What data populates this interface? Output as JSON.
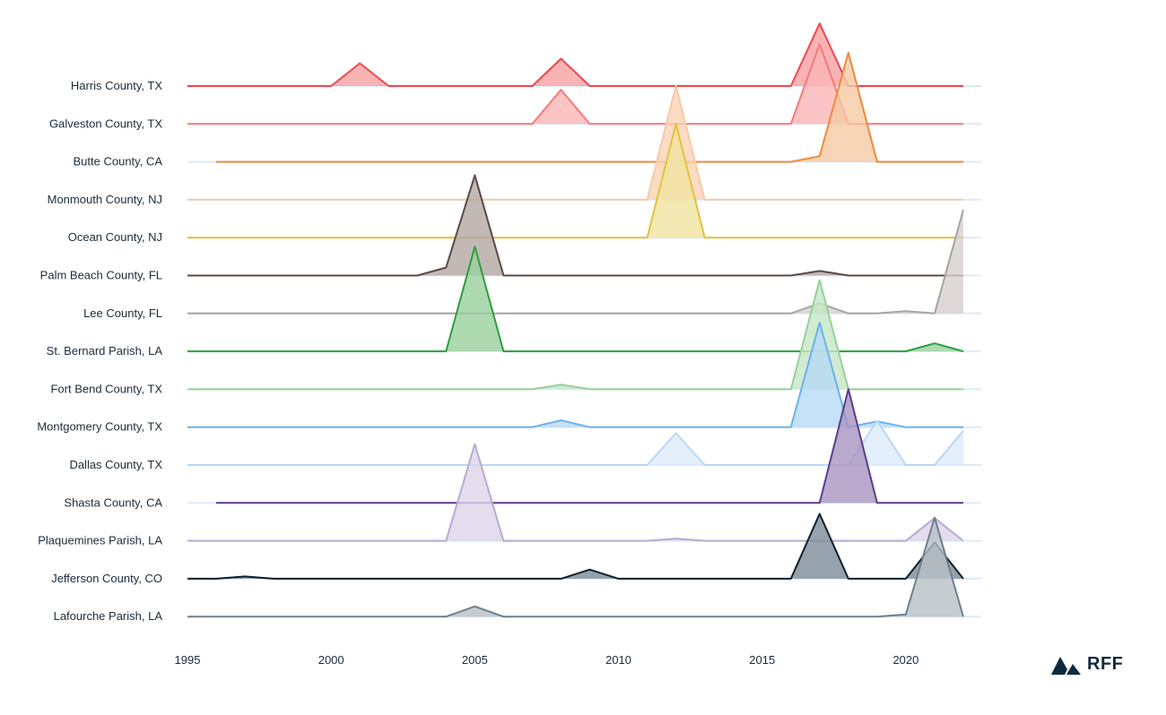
{
  "chart_data": {
    "type": "area",
    "subtype": "ridgeline",
    "title": "",
    "xlabel": "",
    "ylabel": "",
    "xlim": [
      1995,
      2022
    ],
    "x_ticks": [
      "1995",
      "2000",
      "2005",
      "2010",
      "2015",
      "2020"
    ],
    "value_note_scale": "relative peak height, 0-100",
    "grid": "baseline per row",
    "series": [
      {
        "name": "Harris County, TX",
        "start": 1995,
        "color": "#f0484e",
        "fill": "#f7a0a3",
        "peaks": {
          "2001": 20,
          "2008": 24,
          "2017": 55
        }
      },
      {
        "name": "Galveston County, TX",
        "start": 1995,
        "color": "#f7797b",
        "fill": "#fcb5b7",
        "peaks": {
          "2008": 30,
          "2017": 70
        }
      },
      {
        "name": "Butte County, CA",
        "start": 1996,
        "color": "#f08a3c",
        "fill": "#f5c9a3",
        "peaks": {
          "2017": 5,
          "2018": 96
        }
      },
      {
        "name": "Monmouth County, NJ",
        "start": 1995,
        "color": "#f8c9a6",
        "fill": "#f9d3b5",
        "peaks": {
          "2012": 100
        }
      },
      {
        "name": "Ocean County, NJ",
        "start": 1995,
        "color": "#e3c23c",
        "fill": "#f0e3a0",
        "peaks": {
          "2012": 100
        }
      },
      {
        "name": "Palm Beach County, FL",
        "start": 1995,
        "color": "#5a4a45",
        "fill": "#b3a6a1",
        "peaks": {
          "2004": 7,
          "2005": 88,
          "2017": 4
        }
      },
      {
        "name": "Lee County, FL",
        "start": 1995,
        "color": "#aaa3a1",
        "fill": "#d6d0ce",
        "peaks": {
          "2017": 9,
          "2020": 2,
          "2022": 91
        }
      },
      {
        "name": "St. Bernard Parish, LA",
        "start": 1995,
        "color": "#2e9e3e",
        "fill": "#98cf9e",
        "peaks": {
          "2005": 92,
          "2021": 7
        }
      },
      {
        "name": "Fort Bend County, TX",
        "start": 1995,
        "color": "#96d19a",
        "fill": "#c5e6c6",
        "peaks": {
          "2008": 4,
          "2017": 96
        }
      },
      {
        "name": "Montgomery County, TX",
        "start": 1995,
        "color": "#6cb2ea",
        "fill": "#b6d9f5",
        "peaks": {
          "2008": 6,
          "2017": 92,
          "2019": 5
        }
      },
      {
        "name": "Dallas County, TX",
        "start": 1995,
        "color": "#b8d8f5",
        "fill": "#dcebfa",
        "peaks": {
          "2012": 28,
          "2019": 39,
          "2022": 30
        }
      },
      {
        "name": "Shasta County, CA",
        "start": 1996,
        "color": "#5c3d8c",
        "fill": "#a893c1",
        "peaks": {
          "2018": 100
        }
      },
      {
        "name": "Plaquemines Parish, LA",
        "start": 1995,
        "color": "#b7a9d2",
        "fill": "#dcd5e9",
        "peaks": {
          "2005": 85,
          "2012": 2,
          "2021": 20
        }
      },
      {
        "name": "Jefferson County, CO",
        "start": 1995,
        "color": "#0d1f2d",
        "fill": "#7a8b96",
        "peaks": {
          "1997": 2,
          "2009": 8,
          "2017": 57,
          "2021": 32
        }
      },
      {
        "name": "Lafourche Parish, LA",
        "start": 1995,
        "color": "#6f808c",
        "fill": "#b6c0c6",
        "peaks": {
          "2005": 9,
          "2020": 2,
          "2021": 87
        }
      }
    ]
  },
  "logo": {
    "text": "RFF",
    "color": "#0f2a3d"
  }
}
